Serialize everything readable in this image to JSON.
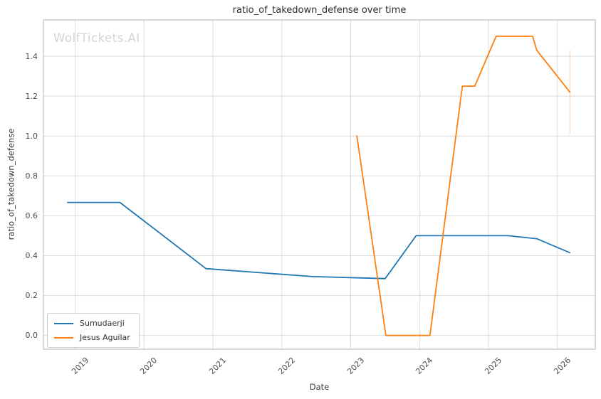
{
  "watermark": "WolfTickets.AI",
  "chart_data": {
    "type": "line",
    "title": "ratio_of_takedown_defense over time",
    "xlabel": "Date",
    "ylabel": "ratio_of_takedown_defense",
    "x_ticks": [
      2019,
      2020,
      2021,
      2022,
      2023,
      2024,
      2025,
      2026
    ],
    "y_ticks": [
      0.0,
      0.2,
      0.4,
      0.6,
      0.8,
      1.0,
      1.2,
      1.4
    ],
    "xlim": [
      2018.54,
      2026.55
    ],
    "ylim": [
      -0.069,
      1.582
    ],
    "grid": true,
    "legend_position": "lower left",
    "series": [
      {
        "name": "Sumudaerji",
        "color": "#1f77b4",
        "x": [
          2018.89,
          2019.65,
          2020.9,
          2022.45,
          2023.5,
          2023.95,
          2025.28,
          2025.7,
          2026.18
        ],
        "y": [
          0.667,
          0.667,
          0.335,
          0.295,
          0.285,
          0.5,
          0.5,
          0.485,
          0.415
        ]
      },
      {
        "name": "Jesus Aguilar",
        "color": "#ff7f0e",
        "x": [
          2023.09,
          2023.51,
          2024.15,
          2024.62,
          2024.8,
          2025.11,
          2025.64,
          2025.7,
          2026.18
        ],
        "y": [
          1.0,
          0.0,
          0.0,
          1.25,
          1.25,
          1.5,
          1.5,
          1.43,
          1.22
        ]
      }
    ],
    "annotations": {
      "final_point_error_bar": {
        "series": "Jesus Aguilar",
        "x": 2026.18,
        "y_low": 1.01,
        "y_high": 1.43,
        "opacity": 0.3
      }
    },
    "style": {
      "grid_color": "#dcdcdc",
      "spine_color": "#bfbfbf",
      "background": "#ffffff"
    }
  }
}
